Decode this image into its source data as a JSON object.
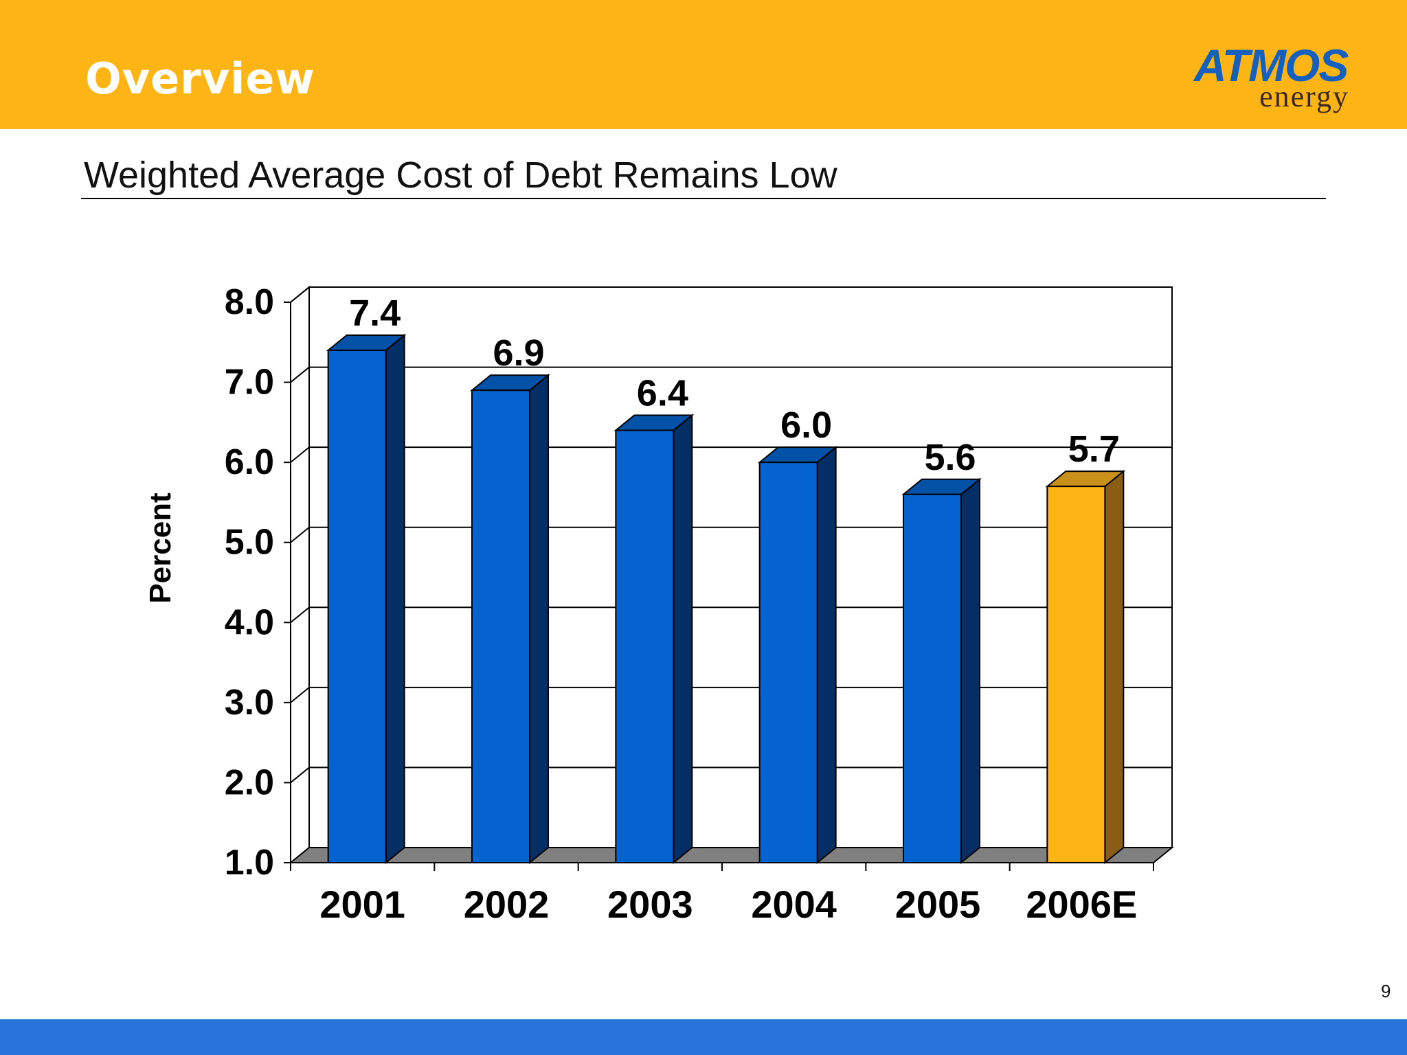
{
  "header": {
    "title": "Overview",
    "logo": {
      "primary": "ATMOS",
      "secondary": "energy"
    }
  },
  "subtitle": "Weighted Average Cost of Debt Remains Low",
  "page_number": "9",
  "colors": {
    "header_bg": "#FDB515",
    "footer_bg": "#2673D9",
    "bar_actual": "#0563CF",
    "bar_actual_side": "#032E66",
    "bar_actual_top": "#0452A8",
    "bar_estimate": "#FDB515",
    "bar_estimate_side": "#8A5E12",
    "bar_estimate_top": "#C9901A",
    "floor": "#808080"
  },
  "chart_data": {
    "type": "bar",
    "title": "Weighted Average Cost of Debt Remains Low",
    "xlabel": "",
    "ylabel": "Percent",
    "categories": [
      "2001",
      "2002",
      "2003",
      "2004",
      "2005",
      "2006E"
    ],
    "values": [
      7.4,
      6.9,
      6.4,
      6.0,
      5.6,
      5.7
    ],
    "data_labels": [
      "7.4",
      "6.9",
      "6.4",
      "6.0",
      "5.6",
      "5.7"
    ],
    "estimated": [
      false,
      false,
      false,
      false,
      false,
      true
    ],
    "ylim": [
      1.0,
      8.0
    ],
    "yticks": [
      1.0,
      2.0,
      3.0,
      4.0,
      5.0,
      6.0,
      7.0,
      8.0
    ],
    "ytick_labels": [
      "1.0",
      "2.0",
      "3.0",
      "4.0",
      "5.0",
      "6.0",
      "7.0",
      "8.0"
    ],
    "grid": true,
    "legend": "none",
    "style": "3d-column"
  }
}
